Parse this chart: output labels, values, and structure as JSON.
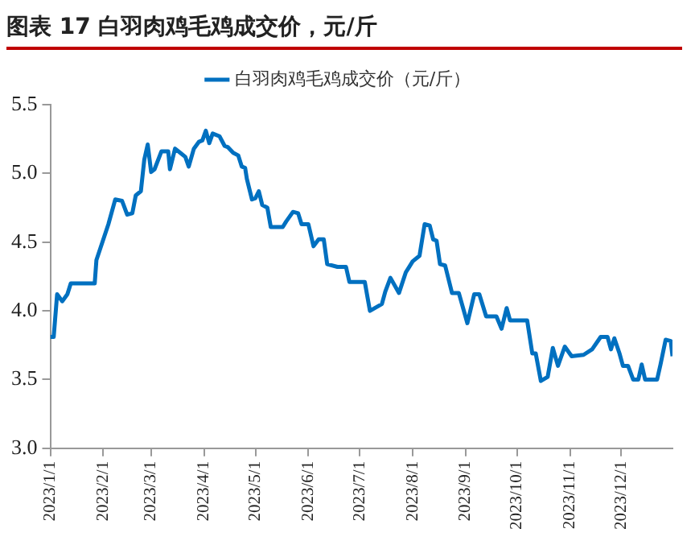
{
  "chart_data": {
    "type": "line",
    "title": "图表 17 白羽肉鸡毛鸡成交价，元/斤",
    "x": [
      "2023-01-01",
      "2023-01-03",
      "2023-01-05",
      "2023-01-08",
      "2023-01-11",
      "2023-01-13",
      "2023-01-27",
      "2023-01-28",
      "2023-02-04",
      "2023-02-08",
      "2023-02-12",
      "2023-02-15",
      "2023-02-18",
      "2023-02-20",
      "2023-02-23",
      "2023-02-25",
      "2023-02-27",
      "2023-03-01",
      "2023-03-03",
      "2023-03-07",
      "2023-03-11",
      "2023-03-12",
      "2023-03-15",
      "2023-03-18",
      "2023-03-21",
      "2023-03-23",
      "2023-03-26",
      "2023-03-29",
      "2023-03-31",
      "2023-04-02",
      "2023-04-04",
      "2023-04-06",
      "2023-04-10",
      "2023-04-13",
      "2023-04-15",
      "2023-04-18",
      "2023-04-21",
      "2023-04-23",
      "2023-04-25",
      "2023-04-26",
      "2023-04-29",
      "2023-05-01",
      "2023-05-03",
      "2023-05-05",
      "2023-05-08",
      "2023-05-10",
      "2023-05-17",
      "2023-05-19",
      "2023-05-23",
      "2023-05-26",
      "2023-05-28",
      "2023-06-01",
      "2023-06-04",
      "2023-06-07",
      "2023-06-10",
      "2023-06-12",
      "2023-06-18",
      "2023-06-23",
      "2023-06-25",
      "2023-07-04",
      "2023-07-07",
      "2023-07-14",
      "2023-07-16",
      "2023-07-19",
      "2023-07-24",
      "2023-07-28",
      "2023-08-01",
      "2023-08-05",
      "2023-08-08",
      "2023-08-11",
      "2023-08-13",
      "2023-08-15",
      "2023-08-17",
      "2023-08-20",
      "2023-08-24",
      "2023-08-28",
      "2023-09-02",
      "2023-09-06",
      "2023-09-09",
      "2023-09-13",
      "2023-09-19",
      "2023-09-22",
      "2023-09-25",
      "2023-09-27",
      "2023-10-07",
      "2023-10-10",
      "2023-10-12",
      "2023-10-15",
      "2023-10-19",
      "2023-10-22",
      "2023-10-25",
      "2023-10-29",
      "2023-11-02",
      "2023-11-09",
      "2023-11-14",
      "2023-11-19",
      "2023-11-23",
      "2023-11-25",
      "2023-11-27",
      "2023-11-30",
      "2023-12-02",
      "2023-12-05",
      "2023-12-08",
      "2023-12-11",
      "2023-12-13",
      "2023-12-15",
      "2023-12-22",
      "2023-12-24",
      "2023-12-27",
      "2023-12-30",
      "2023-12-31"
    ],
    "series": [
      {
        "name": "白羽肉鸡毛鸡成交价（元/斤）",
        "color": "#0070c0",
        "values": [
          3.81,
          3.81,
          4.12,
          4.07,
          4.12,
          4.2,
          4.2,
          4.37,
          4.63,
          4.81,
          4.8,
          4.7,
          4.71,
          4.84,
          4.87,
          5.1,
          5.21,
          5.01,
          5.03,
          5.16,
          5.16,
          5.03,
          5.18,
          5.15,
          5.12,
          5.05,
          5.18,
          5.23,
          5.24,
          5.31,
          5.22,
          5.29,
          5.27,
          5.2,
          5.19,
          5.15,
          5.13,
          5.05,
          5.04,
          4.96,
          4.81,
          4.82,
          4.87,
          4.77,
          4.75,
          4.61,
          4.61,
          4.65,
          4.72,
          4.71,
          4.63,
          4.63,
          4.47,
          4.52,
          4.52,
          4.34,
          4.32,
          4.32,
          4.21,
          4.21,
          4.0,
          4.05,
          4.14,
          4.24,
          4.13,
          4.28,
          4.36,
          4.4,
          4.63,
          4.62,
          4.52,
          4.51,
          4.34,
          4.33,
          4.13,
          4.13,
          3.91,
          4.12,
          4.12,
          3.96,
          3.96,
          3.87,
          4.02,
          3.93,
          3.93,
          3.69,
          3.69,
          3.49,
          3.52,
          3.73,
          3.6,
          3.74,
          3.67,
          3.68,
          3.72,
          3.81,
          3.81,
          3.72,
          3.8,
          3.69,
          3.6,
          3.6,
          3.5,
          3.5,
          3.61,
          3.5,
          3.5,
          3.61,
          3.79,
          3.78,
          3.67
        ]
      }
    ],
    "xlim": [
      "2023-01-01",
      "2023-12-31"
    ],
    "xticks": [
      {
        "value": "2023-01-01",
        "label": "2023/1/1"
      },
      {
        "value": "2023-02-01",
        "label": "2023/2/1"
      },
      {
        "value": "2023-03-01",
        "label": "2023/3/1"
      },
      {
        "value": "2023-04-01",
        "label": "2023/4/1"
      },
      {
        "value": "2023-05-01",
        "label": "2023/5/1"
      },
      {
        "value": "2023-06-01",
        "label": "2023/6/1"
      },
      {
        "value": "2023-07-01",
        "label": "2023/7/1"
      },
      {
        "value": "2023-08-01",
        "label": "2023/8/1"
      },
      {
        "value": "2023-09-01",
        "label": "2023/9/1"
      },
      {
        "value": "2023-10-01",
        "label": "2023/10/1"
      },
      {
        "value": "2023-11-01",
        "label": "2023/11/1"
      },
      {
        "value": "2023-12-01",
        "label": "2023/12/1"
      }
    ],
    "ylim": [
      3,
      5.5
    ],
    "yticks": [
      {
        "value": 3,
        "label": "3.0"
      },
      {
        "value": 3.5,
        "label": "3.5"
      },
      {
        "value": 4,
        "label": "4.0"
      },
      {
        "value": 4.5,
        "label": "4.5"
      },
      {
        "value": 5,
        "label": "5.0"
      },
      {
        "value": 5.5,
        "label": "5.5"
      }
    ],
    "grid": false,
    "legend": "top",
    "marker": "none",
    "line_style": "solid"
  }
}
